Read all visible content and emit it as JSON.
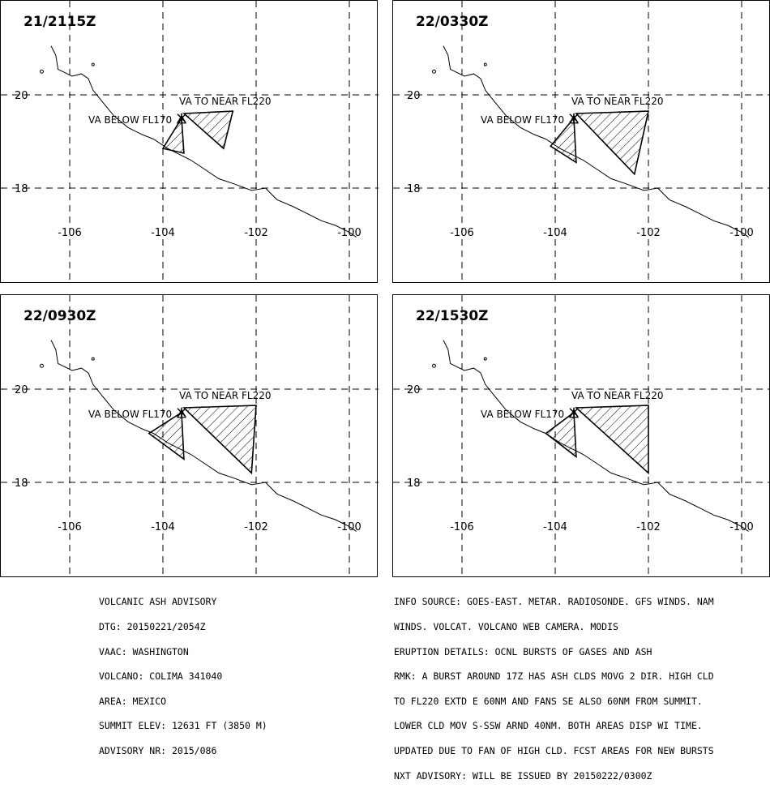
{
  "map_data": {
    "type": "volcanic_ash_advisory_map",
    "lon_range": [
      -107,
      -99
    ],
    "lat_range": [
      17,
      21
    ],
    "lon_ticks": [
      -106,
      -104,
      -102,
      -100
    ],
    "lat_ticks": [
      20,
      18
    ],
    "lon_tick_labels": [
      "-106",
      "-104",
      "-102",
      "-100"
    ],
    "lat_tick_labels": [
      "20",
      "18"
    ],
    "volcano": {
      "lon": -103.6,
      "lat": 19.5
    },
    "label_above": "VA TO NEAR FL220",
    "label_below": "VA BELOW FL170",
    "coast": [
      [
        -106.4,
        21.05
      ],
      [
        -106.3,
        20.85
      ],
      [
        -106.25,
        20.55
      ],
      [
        -105.95,
        20.4
      ],
      [
        -105.75,
        20.45
      ],
      [
        -105.6,
        20.35
      ],
      [
        -105.5,
        20.1
      ],
      [
        -105.3,
        19.85
      ],
      [
        -105.05,
        19.55
      ],
      [
        -104.75,
        19.3
      ],
      [
        -104.45,
        19.15
      ],
      [
        -104.2,
        19.05
      ],
      [
        -103.9,
        18.85
      ],
      [
        -103.7,
        18.75
      ],
      [
        -103.4,
        18.6
      ],
      [
        -103.1,
        18.4
      ],
      [
        -102.8,
        18.2
      ],
      [
        -102.5,
        18.1
      ],
      [
        -102.1,
        17.95
      ],
      [
        -101.8,
        18.0
      ],
      [
        -101.55,
        17.75
      ],
      [
        -101.2,
        17.6
      ],
      [
        -100.9,
        17.45
      ],
      [
        -100.6,
        17.3
      ],
      [
        -100.3,
        17.2
      ],
      [
        -100.0,
        17.05
      ],
      [
        -99.85,
        16.95
      ]
    ],
    "island_1": {
      "lon": -106.6,
      "lat": 20.5
    },
    "island_2": {
      "lon": -105.5,
      "lat": 20.65
    },
    "panels": [
      {
        "time": "21/2115Z",
        "high_poly": [
          [
            -103.55,
            19.6
          ],
          [
            -102.5,
            19.65
          ],
          [
            -102.7,
            18.85
          ]
        ],
        "low_poly": [
          [
            -103.6,
            19.5
          ],
          [
            -104.0,
            18.85
          ],
          [
            -103.55,
            18.75
          ]
        ]
      },
      {
        "time": "22/0330Z",
        "high_poly": [
          [
            -103.55,
            19.6
          ],
          [
            -102.0,
            19.65
          ],
          [
            -102.3,
            18.3
          ]
        ],
        "low_poly": [
          [
            -103.6,
            19.5
          ],
          [
            -104.1,
            18.9
          ],
          [
            -103.55,
            18.55
          ]
        ]
      },
      {
        "time": "22/0930Z",
        "high_poly": [
          [
            -103.55,
            19.6
          ],
          [
            -102.0,
            19.65
          ],
          [
            -102.1,
            18.2
          ]
        ],
        "low_poly": [
          [
            -103.6,
            19.5
          ],
          [
            -104.3,
            19.05
          ],
          [
            -103.55,
            18.5
          ]
        ]
      },
      {
        "time": "22/1530Z",
        "high_poly": [
          [
            -103.55,
            19.6
          ],
          [
            -102.0,
            19.65
          ],
          [
            -102.0,
            18.2
          ]
        ],
        "low_poly": [
          [
            -103.6,
            19.5
          ],
          [
            -104.2,
            19.05
          ],
          [
            -103.55,
            18.55
          ]
        ]
      }
    ]
  },
  "advisory_left": [
    "VOLCANIC ASH ADVISORY",
    "DTG: 20150221/2054Z",
    "VAAC: WASHINGTON",
    "VOLCANO: COLIMA 341040",
    "AREA: MEXICO",
    "SUMMIT ELEV: 12631 FT (3850 M)",
    "ADVISORY NR: 2015/086"
  ],
  "advisory_right": [
    "INFO SOURCE: GOES-EAST. METAR. RADIOSONDE. GFS WINDS. NAM",
    "WINDS. VOLCAT. VOLCANO WEB CAMERA. MODIS",
    "ERUPTION DETAILS: OCNL BURSTS OF GASES AND ASH",
    "RMK: A BURST AROUND 17Z HAS ASH CLDS MOVG 2 DIR. HIGH CLD",
    "TO FL220 EXTD E 60NM AND FANS SE ALSO 60NM FROM SUMMIT.",
    "LOWER CLD MOV S-SSW ARND 40NM. BOTH AREAS DISP WI TIME.",
    "UPDATED DUE TO FAN OF HIGH CLD. FCST AREAS FOR NEW BURSTS",
    "NXT ADVISORY: WILL BE ISSUED BY 20150222/0300Z"
  ]
}
